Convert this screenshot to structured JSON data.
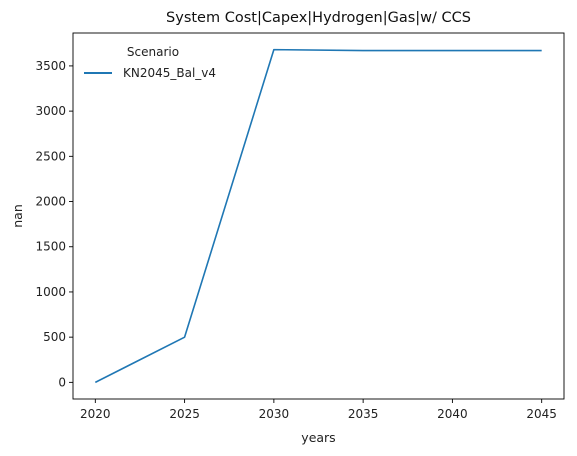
{
  "chart_data": {
    "type": "line",
    "title": "System Cost|Capex|Hydrogen|Gas|w/ CCS",
    "xlabel": "years",
    "ylabel": "nan",
    "x": [
      2020,
      2025,
      2030,
      2035,
      2040,
      2045
    ],
    "series": [
      {
        "name": "KN2045_Bal_v4",
        "values": [
          0,
          500,
          3680,
          3670,
          3670,
          3670
        ],
        "color": "#1f77b4"
      }
    ],
    "xticks": [
      "2020",
      "2025",
      "2030",
      "2035",
      "2040",
      "2045"
    ],
    "yticks": [
      "0",
      "500",
      "1000",
      "1500",
      "2000",
      "2500",
      "3000",
      "3500"
    ],
    "xlim": [
      2018.75,
      2046.25
    ],
    "ylim": [
      -184,
      3864
    ],
    "legend": {
      "title": "Scenario",
      "placement": "top-left"
    },
    "grid": false
  }
}
